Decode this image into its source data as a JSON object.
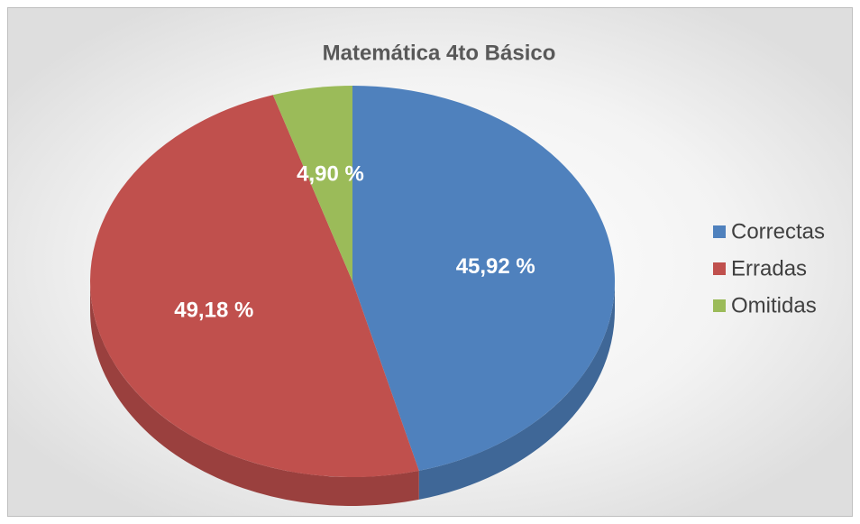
{
  "chart_data": {
    "type": "pie",
    "title": "Matemática 4to Básico",
    "categories": [
      "Correctas",
      "Erradas",
      "Omitidas"
    ],
    "values": [
      45.92,
      49.18,
      4.9
    ],
    "value_labels": [
      "45,92 %",
      "49,18 %",
      "4,90 %"
    ],
    "colors": [
      "#4f81bd",
      "#c0504d",
      "#9bbb59"
    ],
    "legend": "right"
  }
}
